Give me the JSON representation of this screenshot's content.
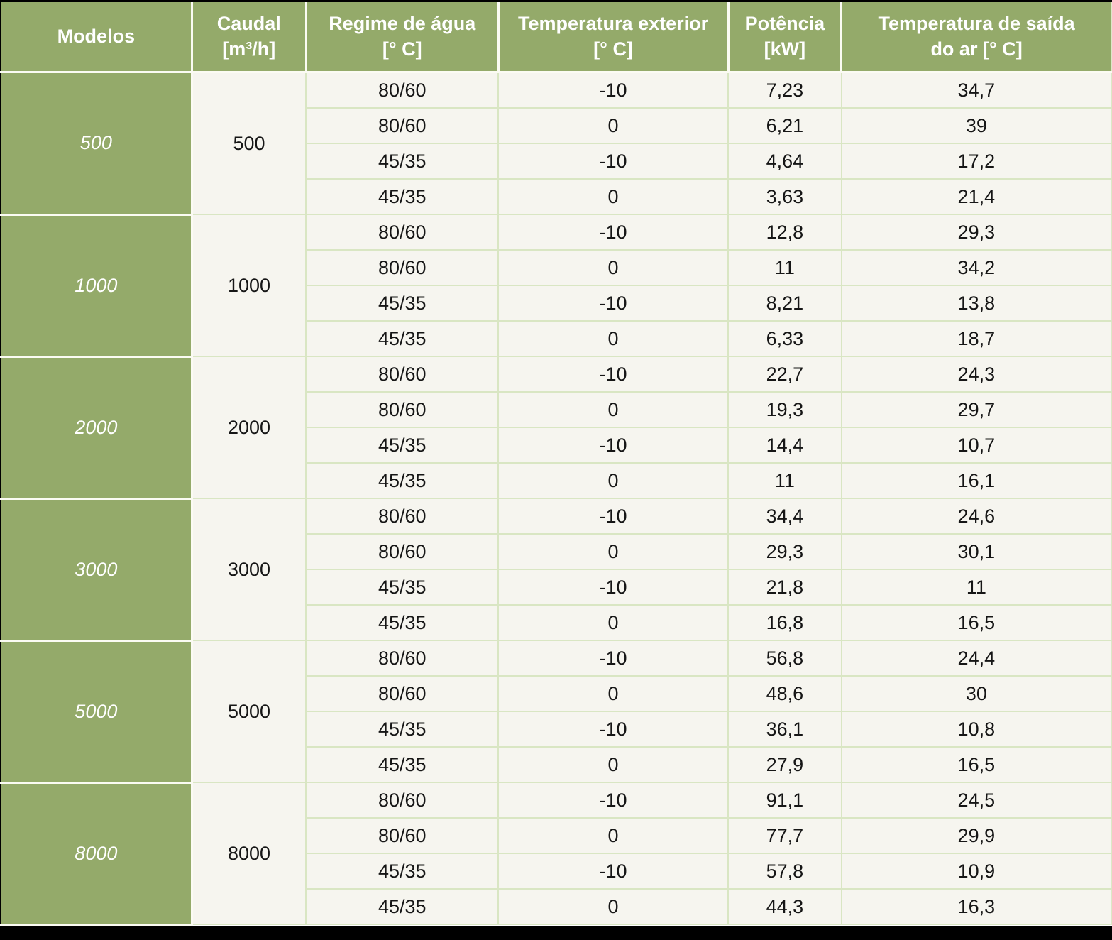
{
  "colors": {
    "header_green": "#94aa6a",
    "body_background": "#f6f5ef",
    "grid_line_green": "#d9e6c3",
    "group_separator_white": "#fbfbf3",
    "edge_black": "#000000",
    "header_text": "#ffffff",
    "body_text": "#161616"
  },
  "table": {
    "headers": [
      {
        "line1": "Modelos",
        "line2": ""
      },
      {
        "line1": "Caudal",
        "line2": "[m³/h]"
      },
      {
        "line1": "Regime de água",
        "line2": "[° C]"
      },
      {
        "line1": "Temperatura exterior",
        "line2": "[° C]"
      },
      {
        "line1": "Potência",
        "line2": "[kW]"
      },
      {
        "line1": "Temperatura de saída",
        "line2": "do ar [° C]"
      }
    ],
    "groups": [
      {
        "model": "500",
        "caudal": "500",
        "rows": [
          {
            "regime": "80/60",
            "temp_ext": "-10",
            "potencia": "7,23",
            "temp_saida": "34,7"
          },
          {
            "regime": "80/60",
            "temp_ext": "0",
            "potencia": "6,21",
            "temp_saida": "39"
          },
          {
            "regime": "45/35",
            "temp_ext": "-10",
            "potencia": "4,64",
            "temp_saida": "17,2"
          },
          {
            "regime": "45/35",
            "temp_ext": "0",
            "potencia": "3,63",
            "temp_saida": "21,4"
          }
        ]
      },
      {
        "model": "1000",
        "caudal": "1000",
        "rows": [
          {
            "regime": "80/60",
            "temp_ext": "-10",
            "potencia": "12,8",
            "temp_saida": "29,3"
          },
          {
            "regime": "80/60",
            "temp_ext": "0",
            "potencia": "11",
            "temp_saida": "34,2"
          },
          {
            "regime": "45/35",
            "temp_ext": "-10",
            "potencia": "8,21",
            "temp_saida": "13,8"
          },
          {
            "regime": "45/35",
            "temp_ext": "0",
            "potencia": "6,33",
            "temp_saida": "18,7"
          }
        ]
      },
      {
        "model": "2000",
        "caudal": "2000",
        "rows": [
          {
            "regime": "80/60",
            "temp_ext": "-10",
            "potencia": "22,7",
            "temp_saida": "24,3"
          },
          {
            "regime": "80/60",
            "temp_ext": "0",
            "potencia": "19,3",
            "temp_saida": "29,7"
          },
          {
            "regime": "45/35",
            "temp_ext": "-10",
            "potencia": "14,4",
            "temp_saida": "10,7"
          },
          {
            "regime": "45/35",
            "temp_ext": "0",
            "potencia": "11",
            "temp_saida": "16,1"
          }
        ]
      },
      {
        "model": "3000",
        "caudal": "3000",
        "rows": [
          {
            "regime": "80/60",
            "temp_ext": "-10",
            "potencia": "34,4",
            "temp_saida": "24,6"
          },
          {
            "regime": "80/60",
            "temp_ext": "0",
            "potencia": "29,3",
            "temp_saida": "30,1"
          },
          {
            "regime": "45/35",
            "temp_ext": "-10",
            "potencia": "21,8",
            "temp_saida": "11"
          },
          {
            "regime": "45/35",
            "temp_ext": "0",
            "potencia": "16,8",
            "temp_saida": "16,5"
          }
        ]
      },
      {
        "model": "5000",
        "caudal": "5000",
        "rows": [
          {
            "regime": "80/60",
            "temp_ext": "-10",
            "potencia": "56,8",
            "temp_saida": "24,4"
          },
          {
            "regime": "80/60",
            "temp_ext": "0",
            "potencia": "48,6",
            "temp_saida": "30"
          },
          {
            "regime": "45/35",
            "temp_ext": "-10",
            "potencia": "36,1",
            "temp_saida": "10,8"
          },
          {
            "regime": "45/35",
            "temp_ext": "0",
            "potencia": "27,9",
            "temp_saida": "16,5"
          }
        ]
      },
      {
        "model": "8000",
        "caudal": "8000",
        "rows": [
          {
            "regime": "80/60",
            "temp_ext": "-10",
            "potencia": "91,1",
            "temp_saida": "24,5"
          },
          {
            "regime": "80/60",
            "temp_ext": "0",
            "potencia": "77,7",
            "temp_saida": "29,9"
          },
          {
            "regime": "45/35",
            "temp_ext": "-10",
            "potencia": "57,8",
            "temp_saida": "10,9"
          },
          {
            "regime": "45/35",
            "temp_ext": "0",
            "potencia": "44,3",
            "temp_saida": "16,3"
          }
        ]
      }
    ]
  }
}
